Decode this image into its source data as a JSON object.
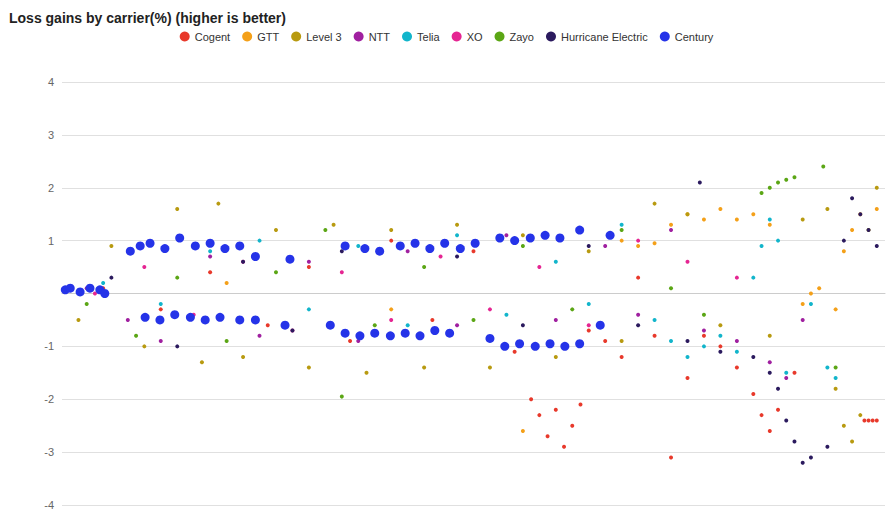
{
  "chart_data": {
    "type": "scatter",
    "title": "Loss gains by carrier(%) (higher is better)",
    "xlim": [
      0,
      100
    ],
    "ylim": [
      -4,
      4
    ],
    "yticks": [
      4,
      3,
      2,
      1,
      -1,
      -2,
      -3,
      -4
    ],
    "grid": true,
    "legend": "top",
    "tick_labels": "y",
    "marker": "circle",
    "series": [
      {
        "name": "Cogent",
        "color": "#e8392b",
        "x": [
          5,
          12,
          18,
          25,
          30,
          35,
          40,
          45,
          50,
          55,
          57,
          58,
          59,
          60,
          61,
          62,
          63,
          64,
          66,
          68,
          70,
          72,
          74,
          76,
          78,
          80,
          82,
          84,
          85,
          86,
          87,
          89,
          97.5,
          98,
          98.5,
          99
        ],
        "values": [
          0.1,
          -0.3,
          0.4,
          -0.6,
          0.5,
          -0.9,
          1.0,
          -0.5,
          0.8,
          -1.1,
          -2.0,
          -2.3,
          -2.7,
          -2.2,
          -2.9,
          -2.5,
          -2.1,
          -0.7,
          -0.9,
          -1.2,
          0.3,
          -0.8,
          -3.1,
          -1.6,
          -0.8,
          -1.0,
          -1.4,
          -1.9,
          -2.3,
          -2.6,
          -2.2,
          -1.5,
          -2.4,
          -2.4,
          -2.4,
          -2.4
        ]
      },
      {
        "name": "GTT",
        "color": "#f4a019",
        "x": [
          20,
          40,
          56,
          68,
          70,
          72,
          74,
          76,
          78,
          80,
          82,
          84,
          86,
          90,
          91,
          92,
          94,
          95,
          96,
          97,
          99
        ],
        "values": [
          0.2,
          -0.3,
          -2.6,
          1.0,
          0.9,
          0.95,
          1.3,
          1.5,
          1.4,
          1.6,
          1.4,
          1.5,
          1.3,
          -0.2,
          0.0,
          0.1,
          -0.3,
          0.8,
          1.2,
          1.5,
          1.6
        ]
      },
      {
        "name": "Level 3",
        "color": "#b89a10",
        "x": [
          2,
          6,
          10,
          14,
          17,
          19,
          22,
          26,
          30,
          33,
          37,
          40,
          44,
          48,
          52,
          56,
          60,
          64,
          68,
          72,
          76,
          80,
          86,
          90,
          93,
          94,
          95,
          96,
          97,
          98,
          99
        ],
        "values": [
          -0.5,
          0.9,
          -1.0,
          1.6,
          -1.3,
          1.7,
          -1.2,
          1.2,
          -1.4,
          1.3,
          -1.5,
          1.2,
          -1.4,
          1.3,
          -1.4,
          1.1,
          -1.2,
          0.8,
          -0.9,
          1.7,
          1.5,
          -0.6,
          -0.8,
          1.4,
          1.6,
          -1.8,
          -2.5,
          -2.8,
          -2.3,
          1.2,
          2.0
        ]
      },
      {
        "name": "NTT",
        "color": "#a020a0",
        "x": [
          3,
          8,
          12,
          18,
          24,
          30,
          36,
          42,
          48,
          54,
          60,
          66,
          70,
          74,
          78,
          82,
          86,
          88,
          90
        ],
        "values": [
          0.1,
          -0.5,
          -0.9,
          0.7,
          -0.8,
          0.6,
          -0.9,
          0.8,
          -0.6,
          1.1,
          -0.5,
          0.9,
          -0.4,
          1.2,
          -0.7,
          -0.9,
          -1.3,
          -1.6,
          -0.5
        ]
      },
      {
        "name": "Telia",
        "color": "#12b5cb",
        "x": [
          5,
          12,
          18,
          24,
          30,
          36,
          42,
          48,
          54,
          60,
          64,
          68,
          72,
          74,
          76,
          78,
          80,
          82,
          84,
          85,
          86,
          87,
          88,
          91,
          93,
          94
        ],
        "values": [
          0.2,
          -0.2,
          0.8,
          1.0,
          -0.3,
          0.9,
          -0.6,
          1.1,
          -0.4,
          0.6,
          -0.2,
          1.3,
          -0.5,
          -0.9,
          -1.2,
          -1.0,
          -0.8,
          -1.1,
          0.3,
          0.9,
          1.4,
          1.0,
          -1.5,
          -0.2,
          -1.4,
          -1.6
        ]
      },
      {
        "name": "XO",
        "color": "#e52592",
        "x": [
          4,
          10,
          16,
          22,
          28,
          34,
          40,
          46,
          52,
          58,
          64,
          70,
          76,
          82
        ],
        "values": [
          0.0,
          0.5,
          -0.4,
          0.6,
          -0.7,
          0.4,
          -0.5,
          0.7,
          -0.3,
          0.5,
          -0.6,
          1.0,
          0.6,
          0.3
        ]
      },
      {
        "name": "Zayo",
        "color": "#5ba615",
        "x": [
          3,
          9,
          14,
          20,
          26,
          32,
          34,
          38,
          44,
          50,
          56,
          62,
          68,
          74,
          78,
          85,
          86,
          87,
          88,
          89,
          92.5,
          94
        ],
        "values": [
          -0.2,
          -0.8,
          0.3,
          -0.9,
          0.4,
          1.2,
          -1.95,
          -0.6,
          0.5,
          -0.5,
          0.9,
          -0.3,
          1.2,
          0.1,
          -0.4,
          1.9,
          2.0,
          2.1,
          2.15,
          2.2,
          2.4,
          -1.4
        ]
      },
      {
        "name": "Hurricane Electric",
        "color": "#2b1a5e",
        "x": [
          6,
          14,
          22,
          28,
          34,
          40,
          48,
          56,
          64,
          70,
          76,
          77.5,
          80,
          84,
          86,
          87,
          88,
          89,
          90,
          91,
          93,
          95,
          96,
          97,
          98,
          99
        ],
        "values": [
          0.3,
          -1.0,
          0.6,
          -0.7,
          0.8,
          -0.8,
          0.7,
          -0.6,
          0.9,
          -0.6,
          -0.9,
          2.1,
          -1.1,
          -1.2,
          -1.5,
          -1.8,
          -2.4,
          -2.8,
          -3.2,
          -3.1,
          -2.9,
          1.0,
          1.8,
          1.5,
          1.2,
          0.9
        ]
      },
      {
        "name": "Century",
        "color": "#2533e8",
        "x": [
          0.4,
          1.0,
          2.2,
          3.4,
          4.6,
          5.2,
          8.3,
          9.5,
          10.7,
          12.5,
          14.3,
          16.2,
          18,
          19.8,
          21.6,
          23.5,
          27.7,
          34.4,
          36.8,
          38.6,
          41.1,
          42.9,
          44.7,
          46.5,
          48.4,
          50.2,
          53.2,
          55,
          56.9,
          58.7,
          60.5,
          62.9,
          66.6,
          10.1,
          11.9,
          13.7,
          15.6,
          17.4,
          19.2,
          21.6,
          23.5,
          27.1,
          32.6,
          34.4,
          36.2,
          38,
          39.9,
          41.7,
          43.5,
          45.3,
          47.1,
          52,
          53.8,
          55.6,
          57.5,
          59.3,
          61.1,
          62.9,
          65.4
        ],
        "values": [
          0.07,
          0.1,
          0.03,
          0.1,
          0.07,
          0.0,
          0.8,
          0.9,
          0.95,
          0.85,
          1.05,
          0.9,
          0.95,
          0.85,
          0.9,
          0.7,
          0.65,
          0.9,
          0.85,
          0.8,
          0.9,
          0.95,
          0.85,
          0.95,
          0.85,
          0.95,
          1.05,
          1.0,
          1.05,
          1.1,
          1.05,
          1.2,
          1.1,
          -0.45,
          -0.5,
          -0.4,
          -0.45,
          -0.5,
          -0.45,
          -0.5,
          -0.5,
          -0.6,
          -0.6,
          -0.75,
          -0.8,
          -0.75,
          -0.8,
          -0.75,
          -0.8,
          -0.7,
          -0.75,
          -0.85,
          -1.0,
          -0.95,
          -1.0,
          -0.95,
          -1.0,
          -0.95,
          -0.6
        ]
      }
    ]
  }
}
